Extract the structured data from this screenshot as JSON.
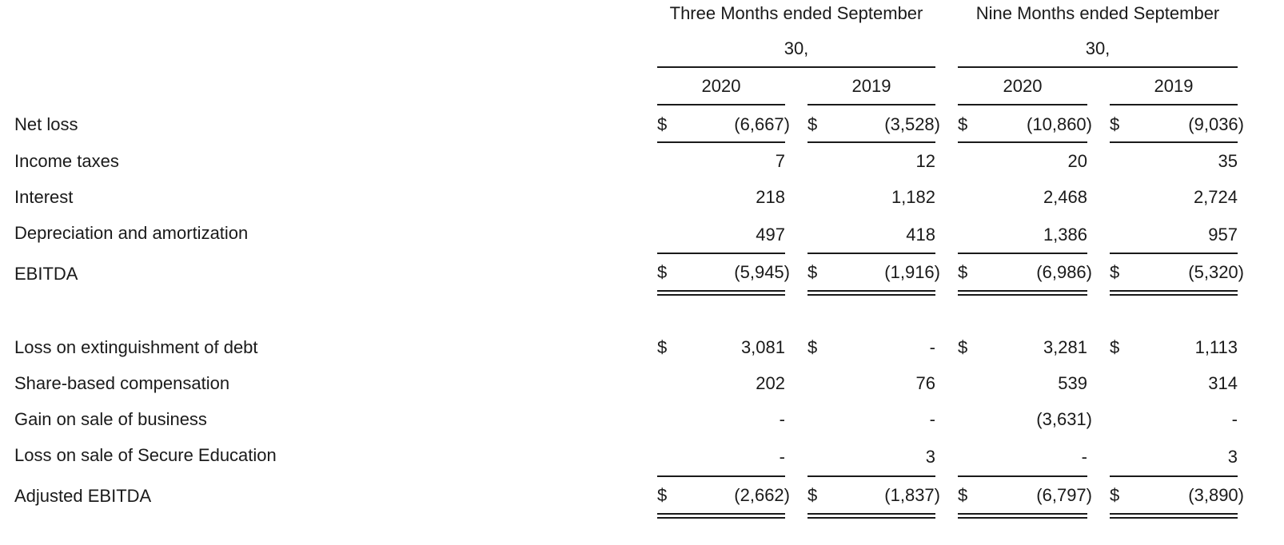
{
  "header": {
    "group1_line1": "Three Months ended September",
    "group1_line2": "30,",
    "group2_line1": "Nine Months ended September",
    "group2_line2": "30,",
    "years": [
      "2020",
      "2019",
      "2020",
      "2019"
    ]
  },
  "rows": [
    {
      "label": "Net loss",
      "dollar": [
        "$",
        "$",
        "$",
        "$"
      ],
      "values": [
        "(6,667)",
        "(3,528)",
        "(10,860)",
        "(9,036)"
      ]
    },
    {
      "label": "Income taxes",
      "dollar": [
        "",
        "",
        "",
        ""
      ],
      "values": [
        "7",
        "12",
        "20",
        "35"
      ]
    },
    {
      "label": "Interest",
      "dollar": [
        "",
        "",
        "",
        ""
      ],
      "values": [
        "218",
        "1,182",
        "2,468",
        "2,724"
      ]
    },
    {
      "label": "Depreciation and amortization",
      "dollar": [
        "",
        "",
        "",
        ""
      ],
      "values": [
        "497",
        "418",
        "1,386",
        "957"
      ]
    },
    {
      "label": "EBITDA",
      "dollar": [
        "$",
        "$",
        "$",
        "$"
      ],
      "values": [
        "(5,945)",
        "(1,916)",
        "(6,986)",
        "(5,320)"
      ]
    },
    {
      "label": "Loss on extinguishment of debt",
      "dollar": [
        "$",
        "$",
        "$",
        "$"
      ],
      "values": [
        "3,081",
        "-",
        "3,281",
        "1,113"
      ]
    },
    {
      "label": "Share-based compensation",
      "dollar": [
        "",
        "",
        "",
        ""
      ],
      "values": [
        "202",
        "76",
        "539",
        "314"
      ]
    },
    {
      "label": "Gain on sale of business",
      "dollar": [
        "",
        "",
        "",
        ""
      ],
      "values": [
        "-",
        "-",
        "(3,631)",
        "-"
      ]
    },
    {
      "label": "Loss on sale of Secure Education",
      "dollar": [
        "",
        "",
        "",
        ""
      ],
      "values": [
        "-",
        "3",
        "-",
        "3"
      ]
    },
    {
      "label": "Adjusted EBITDA",
      "dollar": [
        "$",
        "$",
        "$",
        "$"
      ],
      "values": [
        "(2,662)",
        "(1,837)",
        "(6,797)",
        "(3,890)"
      ]
    }
  ]
}
